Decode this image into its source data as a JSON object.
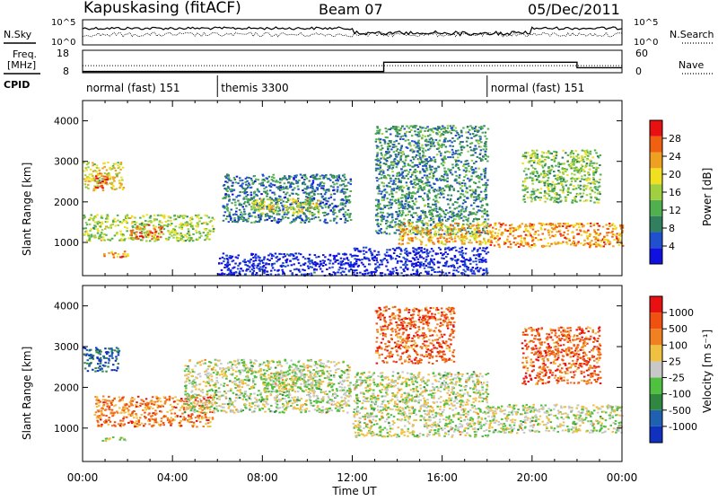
{
  "header": {
    "station": "Kapuskasing (fitACF)",
    "beam": "Beam 07",
    "date": "05/Dec/2011"
  },
  "noise_panel": {
    "left_label": "N.Sky",
    "right_label": "N.Search",
    "left_ticks": [
      "10^5",
      "10^0"
    ],
    "right_ticks": [
      "10^5",
      "10^0"
    ]
  },
  "freq_panel": {
    "left_label_line1": "Freq.",
    "left_label_line2": "[MHz]",
    "right_label": "Nave",
    "left_ticks": [
      "18",
      "8"
    ],
    "right_ticks": [
      "60",
      "0"
    ],
    "nave_steps": [
      {
        "start_h": 0,
        "end_h": 13.4,
        "value": 1
      },
      {
        "start_h": 13.4,
        "end_h": 22.0,
        "value": 28
      },
      {
        "start_h": 22.0,
        "end_h": 24,
        "value": 12
      }
    ],
    "freq_level": 11
  },
  "cpid": {
    "label": "CPID",
    "segments": [
      {
        "start_h": 0,
        "end_h": 6,
        "text": "normal (fast) 151"
      },
      {
        "start_h": 6,
        "end_h": 18,
        "text": "themis 3300"
      },
      {
        "start_h": 18,
        "end_h": 24,
        "text": "normal (fast) 151"
      }
    ]
  },
  "colors": {
    "power_scale": [
      "#1010e0",
      "#2050d0",
      "#308060",
      "#50b050",
      "#a0d040",
      "#f0e020",
      "#f0a020",
      "#f06010",
      "#e81010"
    ],
    "velocity_scale": [
      "#1030c0",
      "#2060b0",
      "#308840",
      "#50c040",
      "#c8c8c8",
      "#f0c040",
      "#f08020",
      "#f05010",
      "#e81010"
    ]
  },
  "chart_data": [
    {
      "type": "heatmap",
      "title": "Power",
      "ylabel": "Slant Range [km]",
      "xlabel": "",
      "x_ticks": [
        "00:00",
        "04:00",
        "08:00",
        "12:00",
        "16:00",
        "20:00",
        "00:00"
      ],
      "x_range_hours": [
        0,
        24
      ],
      "y_ticks": [
        1000,
        2000,
        3000,
        4000
      ],
      "ylim": [
        180,
        4500
      ],
      "colorbar_label": "Power [dB]",
      "colorbar_ticks": [
        "28",
        "24",
        "20",
        "16",
        "12",
        "8",
        "4"
      ],
      "colorbar_range": [
        0,
        30
      ],
      "regions": [
        {
          "t0": 0.0,
          "t1": 1.8,
          "r0": 2300,
          "r1": 3000,
          "level": 0.6
        },
        {
          "t0": 0.5,
          "t1": 1.1,
          "r0": 2350,
          "r1": 2750,
          "level": 0.95
        },
        {
          "t0": 0.0,
          "t1": 5.8,
          "r0": 1050,
          "r1": 1700,
          "level": 0.5
        },
        {
          "t0": 2.0,
          "t1": 3.5,
          "r0": 1100,
          "r1": 1450,
          "level": 0.8
        },
        {
          "t0": 0.8,
          "t1": 2.0,
          "r0": 650,
          "r1": 820,
          "level": 0.75
        },
        {
          "t0": 6.2,
          "t1": 11.9,
          "r0": 1500,
          "r1": 2700,
          "level": 0.25
        },
        {
          "t0": 7.5,
          "t1": 10.5,
          "r0": 1700,
          "r1": 2100,
          "level": 0.55
        },
        {
          "t0": 6.0,
          "t1": 12.0,
          "r0": 200,
          "r1": 750,
          "level": 0.05
        },
        {
          "t0": 13.0,
          "t1": 18.0,
          "r0": 1200,
          "r1": 3900,
          "level": 0.3
        },
        {
          "t0": 14.0,
          "t1": 18.0,
          "r0": 950,
          "r1": 1500,
          "level": 0.7
        },
        {
          "t0": 12.0,
          "t1": 18.0,
          "r0": 200,
          "r1": 900,
          "level": 0.05
        },
        {
          "t0": 18.0,
          "t1": 24.0,
          "r0": 900,
          "r1": 1500,
          "level": 0.75
        },
        {
          "t0": 19.5,
          "t1": 23.0,
          "r0": 2000,
          "r1": 3300,
          "level": 0.45
        }
      ]
    },
    {
      "type": "heatmap",
      "title": "Velocity",
      "ylabel": "Slant Range [km]",
      "xlabel": "Time UT",
      "x_ticks": [
        "00:00",
        "04:00",
        "08:00",
        "12:00",
        "16:00",
        "20:00",
        "00:00"
      ],
      "x_range_hours": [
        0,
        24
      ],
      "y_ticks": [
        1000,
        2000,
        3000,
        4000
      ],
      "ylim": [
        180,
        4500
      ],
      "colorbar_label": "Velocity [m s⁻¹]",
      "colorbar_ticks": [
        "1000",
        "500",
        "100",
        "25",
        "-25",
        "-100",
        "-500",
        "-1000"
      ],
      "regions": [
        {
          "t0": 0.0,
          "t1": 1.6,
          "r0": 2400,
          "r1": 3000,
          "level": 0.15
        },
        {
          "t0": 0.5,
          "t1": 5.8,
          "r0": 1050,
          "r1": 1800,
          "level": 0.75
        },
        {
          "t0": 4.5,
          "t1": 11.9,
          "r0": 1400,
          "r1": 2700,
          "level": 0.5
        },
        {
          "t0": 8.0,
          "t1": 10.5,
          "r0": 1900,
          "r1": 2400,
          "level": 0.5
        },
        {
          "t0": 13.0,
          "t1": 16.5,
          "r0": 2600,
          "r1": 4000,
          "level": 0.8
        },
        {
          "t0": 12.0,
          "t1": 18.0,
          "r0": 800,
          "r1": 2400,
          "level": 0.5
        },
        {
          "t0": 18.0,
          "t1": 24.0,
          "r0": 900,
          "r1": 1600,
          "level": 0.5
        },
        {
          "t0": 19.5,
          "t1": 23.0,
          "r0": 2100,
          "r1": 3500,
          "level": 0.8
        },
        {
          "t0": 0.8,
          "t1": 2.0,
          "r0": 700,
          "r1": 800,
          "level": 0.5
        }
      ]
    }
  ]
}
